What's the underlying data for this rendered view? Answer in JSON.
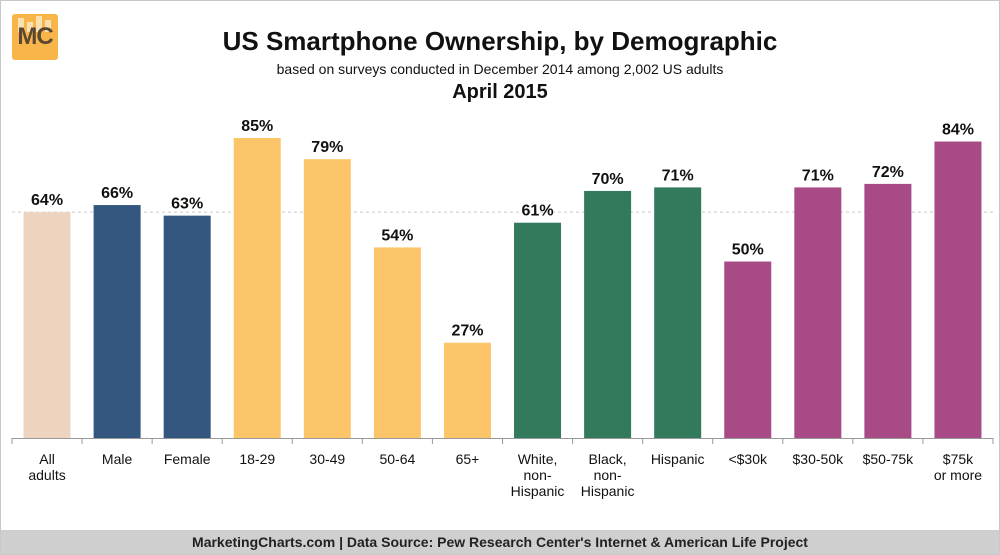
{
  "logo": {
    "text": "MC"
  },
  "chart_data": {
    "type": "bar",
    "title": "US Smartphone Ownership, by Demographic",
    "subtitle": "based on surveys conducted in December 2014 among 2,002 US adults",
    "subtitle2": "April 2015",
    "categories": [
      "All adults",
      "Male",
      "Female",
      "18-29",
      "30-49",
      "50-64",
      "65+",
      "White, non-Hispanic",
      "Black, non-Hispanic",
      "Hispanic",
      "<$30k",
      "$30-50k",
      "$50-75k",
      "$75k or more"
    ],
    "category_lines": [
      [
        "All",
        "adults"
      ],
      [
        "Male"
      ],
      [
        "Female"
      ],
      [
        "18-29"
      ],
      [
        "30-49"
      ],
      [
        "50-64"
      ],
      [
        "65+"
      ],
      [
        "White,",
        "non-",
        "Hispanic"
      ],
      [
        "Black,",
        "non-",
        "Hispanic"
      ],
      [
        "Hispanic"
      ],
      [
        "<$30k"
      ],
      [
        "$30-50k"
      ],
      [
        "$50-75k"
      ],
      [
        "$75k",
        "or more"
      ]
    ],
    "values": [
      64,
      66,
      63,
      85,
      79,
      54,
      27,
      61,
      70,
      71,
      50,
      71,
      72,
      84
    ],
    "data_labels": [
      "64%",
      "66%",
      "63%",
      "85%",
      "79%",
      "54%",
      "27%",
      "61%",
      "70%",
      "71%",
      "50%",
      "71%",
      "72%",
      "84%"
    ],
    "bar_colors": [
      "#eed3be",
      "#34577f",
      "#34577f",
      "#fdc56a",
      "#fdc56a",
      "#fdc56a",
      "#fdc56a",
      "#337a5c",
      "#337a5c",
      "#337a5c",
      "#a84a86",
      "#a84a86",
      "#a84a86",
      "#a84a86"
    ],
    "reference_value": 64,
    "ylim": [
      0,
      85
    ],
    "grid": false,
    "legend": "none",
    "xlabel": "",
    "ylabel": ""
  },
  "footer": {
    "text": "MarketingCharts.com | Data Source: Pew Research Center's Internet & American Life Project"
  }
}
